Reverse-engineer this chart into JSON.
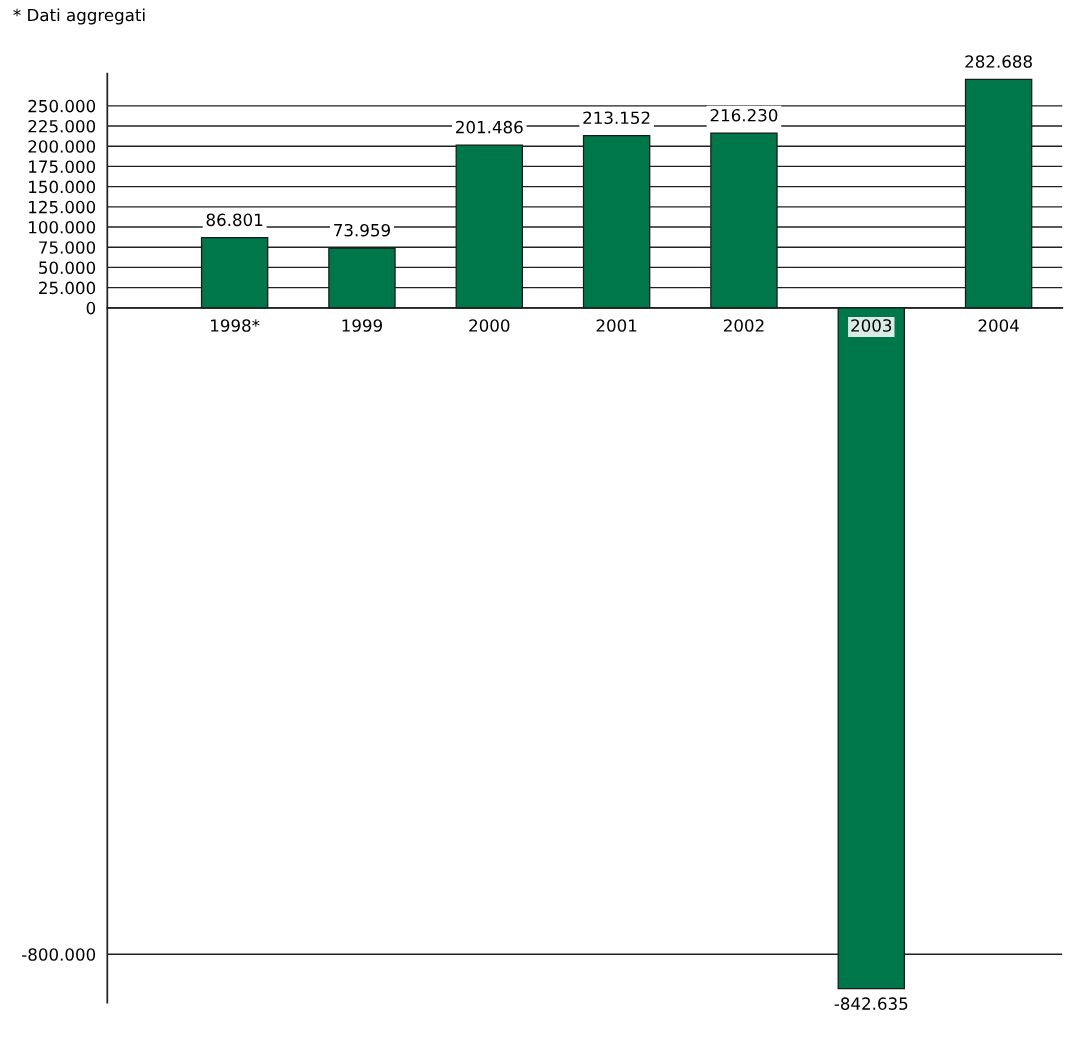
{
  "chart_data": {
    "type": "bar",
    "categories": [
      "1998*",
      "1999",
      "2000",
      "2001",
      "2002",
      "2003",
      "2004"
    ],
    "values": [
      86801,
      73959,
      201486,
      213152,
      216230,
      -842635,
      282688
    ],
    "value_labels": [
      "86.801",
      "73.959",
      "201.486",
      "213.152",
      "216.230",
      "-842.635",
      "282.688"
    ],
    "color": "#00774a",
    "ylim": [
      -860000,
      290000
    ],
    "yticks": [
      {
        "value": -800000,
        "label": "-800.000"
      },
      0,
      {
        "value": 25000,
        "label": "25.000"
      },
      {
        "value": 50000,
        "label": "50.000"
      },
      {
        "value": 75000,
        "label": "75.000"
      },
      {
        "value": 100000,
        "label": "100.000"
      },
      {
        "value": 125000,
        "label": "125.000"
      },
      {
        "value": 150000,
        "label": "150.000"
      },
      {
        "value": 175000,
        "label": "175.000"
      },
      {
        "value": 200000,
        "label": "200.000"
      },
      {
        "value": 225000,
        "label": "225.000"
      },
      {
        "value": 250000,
        "label": "250.000"
      }
    ],
    "grid": "y",
    "annotations": [
      "* Dati aggregati"
    ]
  }
}
